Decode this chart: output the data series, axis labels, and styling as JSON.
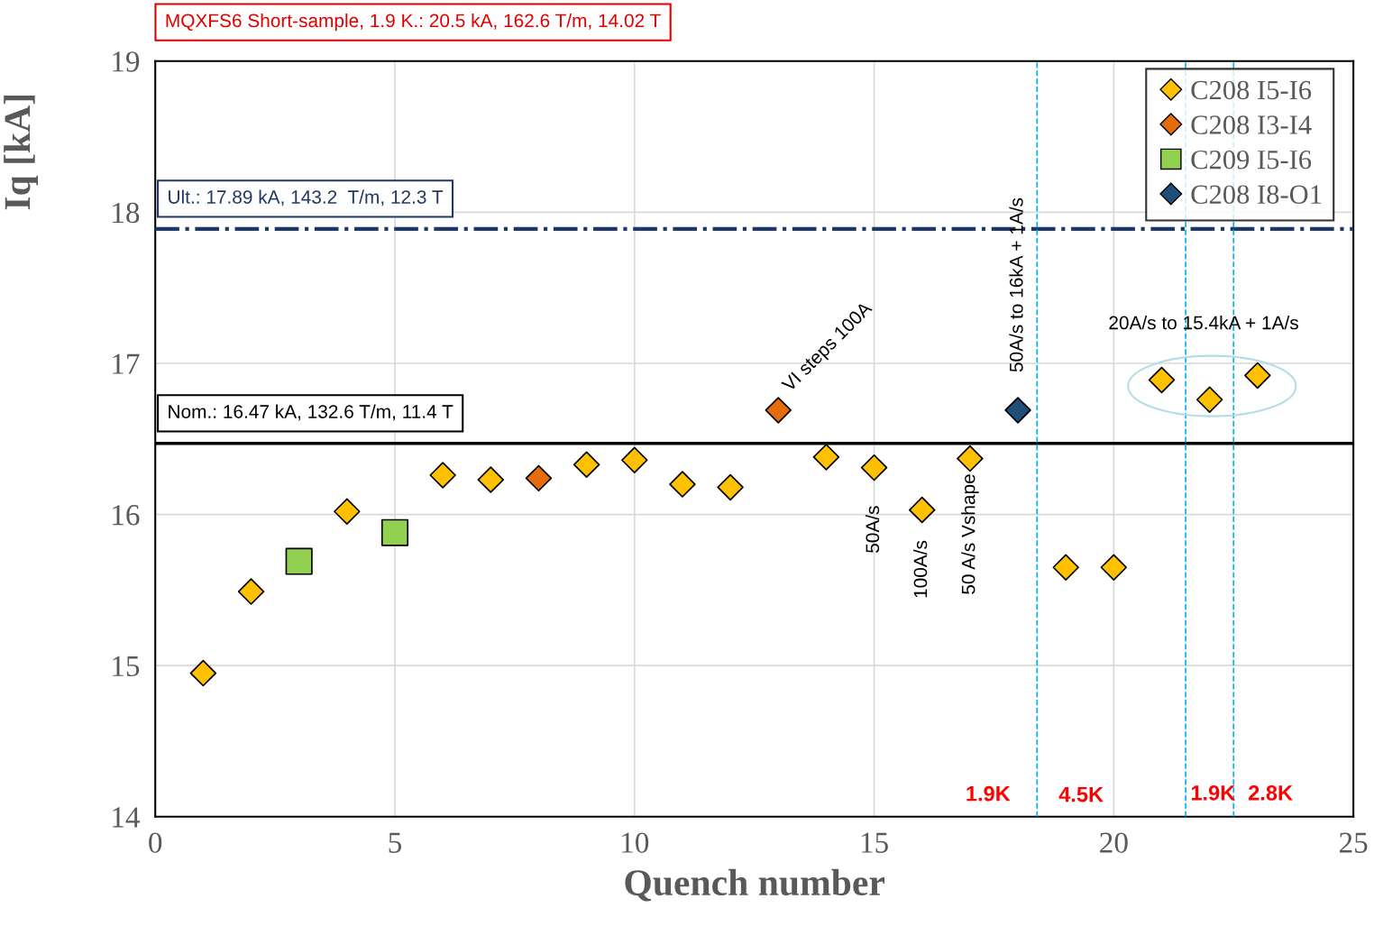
{
  "chart_data": {
    "type": "scatter",
    "title": "MQXFS6 Short-sample, 1.9 K.: 20.5 kA, 162.6 T/m, 14.02 T",
    "xlabel": "Quench number",
    "ylabel": "Iq [kA]",
    "xlim": [
      0,
      25
    ],
    "ylim": [
      14,
      19
    ],
    "xticks": [
      0,
      5,
      10,
      15,
      20,
      25
    ],
    "yticks": [
      14,
      15,
      16,
      17,
      18,
      19
    ],
    "grid": true,
    "legend": "top right",
    "series": [
      {
        "name": "C208 I5-I6",
        "color": "#ffc000",
        "marker": "diamond",
        "x": [
          1,
          2,
          4,
          6,
          7,
          9,
          10,
          11,
          12,
          14,
          15,
          16,
          17,
          19,
          20,
          21,
          22,
          23
        ],
        "values": [
          14.95,
          15.49,
          16.02,
          16.26,
          16.23,
          16.33,
          16.36,
          16.2,
          16.18,
          16.38,
          16.31,
          16.03,
          16.37,
          15.65,
          15.65,
          16.89,
          16.76,
          16.92
        ]
      },
      {
        "name": "C208 I3-I4",
        "color": "#e46c0a",
        "marker": "diamond",
        "x": [
          8,
          13
        ],
        "values": [
          16.24,
          16.69
        ]
      },
      {
        "name": "C209 I5-I6",
        "color": "#92d050",
        "marker": "square",
        "x": [
          3,
          5
        ],
        "values": [
          15.69,
          15.88
        ]
      },
      {
        "name": "C208 I8-O1",
        "color": "#1f4e79",
        "marker": "diamond",
        "x": [
          18
        ],
        "values": [
          16.69
        ]
      }
    ],
    "ref_lines": [
      {
        "axis": "y",
        "value": 17.89,
        "label": "Ult.: 17.89 kA, 143.2  T/m, 12.3 T",
        "color": "#1f3864",
        "line_style": "dashdot"
      },
      {
        "axis": "y",
        "value": 16.47,
        "label": "Nom.: 16.47 kA, 132.6 T/m, 11.4 T",
        "color": "#000000",
        "line_style": "solid"
      },
      {
        "axis": "x",
        "value": 18.4,
        "color": "#00b0f0",
        "line_style": "dashed"
      },
      {
        "axis": "x",
        "value": 21.5,
        "color": "#00b0f0",
        "line_style": "dashed"
      },
      {
        "axis": "x",
        "value": 22.5,
        "color": "#00b0f0",
        "line_style": "dashed"
      }
    ],
    "annotations": [
      {
        "text": "VI steps 100A",
        "x": 13,
        "y": 16.69
      },
      {
        "text": "50A/s to 16kA + 1A/s",
        "x": 18,
        "y": 16.69
      },
      "20A/s to 15.4kA + 1A/s",
      {
        "text": "50A/s",
        "x": 15,
        "y": 16.31
      },
      {
        "text": "100A/s",
        "x": 16,
        "y": 16.03
      },
      {
        "text": "50 A/s Vshape",
        "x": 17,
        "y": 16.37
      },
      "1.9K",
      {
        "text": "4.5K",
        "x": 18.4,
        "y": 14
      },
      {
        "text": "1.9K",
        "x": 21.5,
        "y": 14
      },
      {
        "text": "2.8K",
        "x": 22.5,
        "y": 14
      }
    ]
  }
}
